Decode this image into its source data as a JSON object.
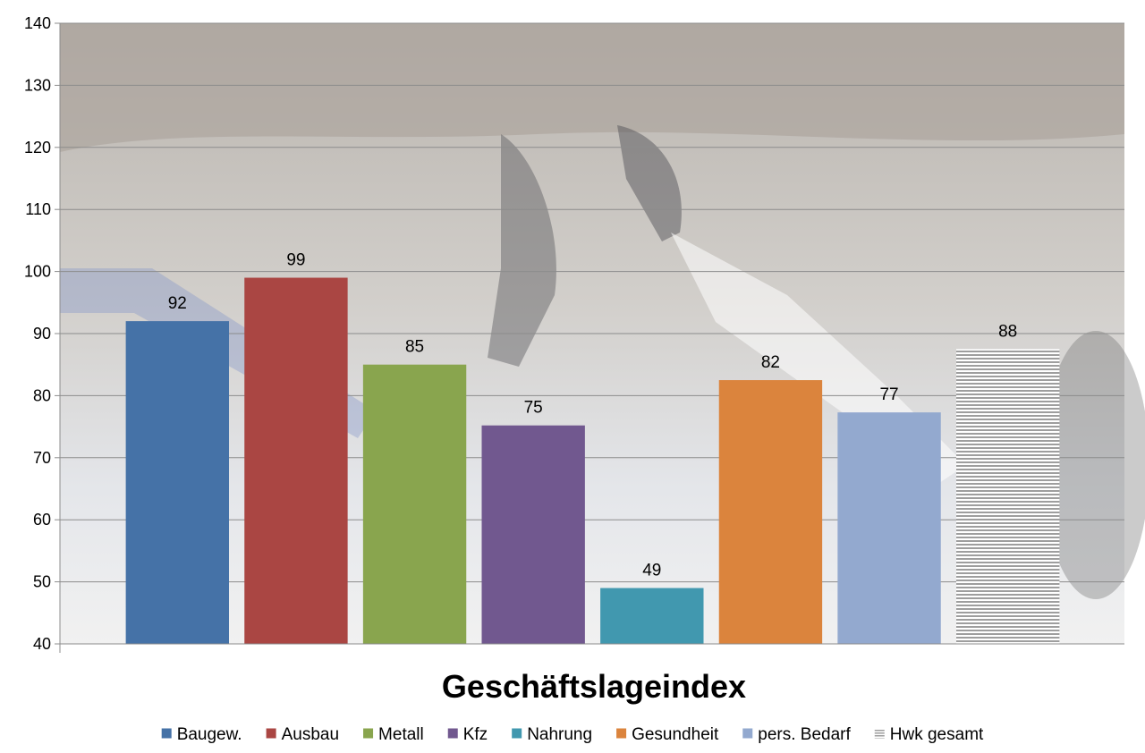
{
  "chart_data": {
    "type": "bar",
    "title": "Geschäftslageindex",
    "xlabel": "",
    "ylabel": "",
    "ylim": [
      40,
      140
    ],
    "yticks": [
      40,
      50,
      60,
      70,
      80,
      90,
      100,
      110,
      120,
      130,
      140
    ],
    "grid": true,
    "legend_position": "bottom",
    "background": "photo of a mechanic working underneath a lifted car (faded)",
    "series": [
      {
        "name": "Baugew.",
        "value": 92,
        "label": "92",
        "color": "#4572a7",
        "pattern": "solid"
      },
      {
        "name": "Ausbau",
        "value": 99,
        "label": "99",
        "color": "#aa4643",
        "pattern": "solid"
      },
      {
        "name": "Metall",
        "value": 85,
        "label": "85",
        "color": "#89a54e",
        "pattern": "solid"
      },
      {
        "name": "Kfz",
        "value": 75.2,
        "label": "75",
        "color": "#71588f",
        "pattern": "solid"
      },
      {
        "name": "Nahrung",
        "value": 49,
        "label": "49",
        "color": "#4198af",
        "pattern": "solid"
      },
      {
        "name": "Gesundheit",
        "value": 82.5,
        "label": "82",
        "color": "#db843d",
        "pattern": "solid"
      },
      {
        "name": "pers. Bedarf",
        "value": 77.3,
        "label": "77",
        "color": "#93a9cf",
        "pattern": "solid"
      },
      {
        "name": "Hwk gesamt",
        "value": 87.5,
        "label": "88",
        "color": "#a6a6a6",
        "pattern": "horizontal-stripes"
      }
    ]
  }
}
